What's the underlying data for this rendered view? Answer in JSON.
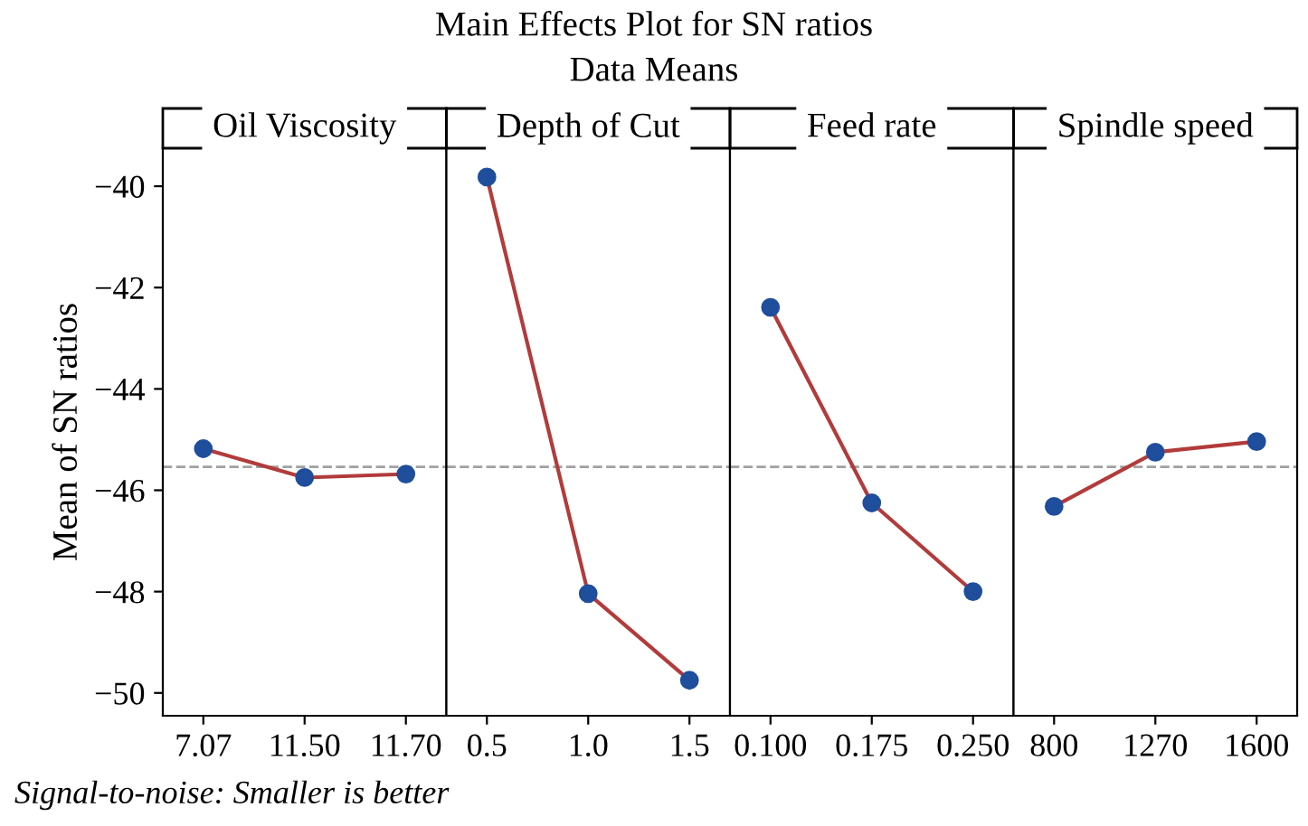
{
  "chart_data": [
    {
      "type": "line",
      "title": "Oil Viscosity",
      "ylabel": "Mean of SN ratios",
      "annotations": [
        "Main Effects Plot for SN ratios",
        "Data Means",
        "Signal-to-noise: Smaller is better"
      ],
      "categories": [
        "7.07",
        "11.50",
        "11.70"
      ],
      "series": [
        {
          "color": "#b23b3b",
          "colors": [
            "#1f4e9c",
            "#1f4e9c",
            "#1f4e9c"
          ],
          "values": [
            -45.18,
            -45.75,
            -45.68
          ]
        }
      ],
      "marker": "circle",
      "ylim": [
        -50.45,
        -39.25
      ],
      "yticks": [
        -50,
        -48,
        -46,
        -44,
        -42,
        -40
      ],
      "ref_lines": [
        {
          "axis": "y",
          "value": -45.54,
          "color": "#a0a0a0",
          "line_style": "dashed"
        }
      ],
      "grid": false
    },
    {
      "type": "line",
      "title": "Depth of Cut",
      "categories": [
        "0.5",
        "1.0",
        "1.5"
      ],
      "series": [
        {
          "color": "#b23b3b",
          "colors": [
            "#1f4e9c",
            "#1f4e9c",
            "#1f4e9c"
          ],
          "values": [
            -39.82,
            -48.04,
            -49.75
          ]
        }
      ],
      "marker": "circle",
      "ylim": [
        -50.45,
        -39.25
      ],
      "yticks": [
        -50,
        -48,
        -46,
        -44,
        -42,
        -40
      ],
      "tick_labels": "x",
      "ref_lines": [
        {
          "axis": "y",
          "value": -45.54,
          "color": "#a0a0a0",
          "line_style": "dashed"
        }
      ],
      "grid": false
    },
    {
      "type": "line",
      "title": "Feed rate",
      "categories": [
        "0.100",
        "0.175",
        "0.250"
      ],
      "series": [
        {
          "color": "#b23b3b",
          "colors": [
            "#1f4e9c",
            "#1f4e9c",
            "#1f4e9c"
          ],
          "values": [
            -42.39,
            -46.25,
            -48.0
          ]
        }
      ],
      "marker": "circle",
      "ylim": [
        -50.45,
        -39.25
      ],
      "yticks": [
        -50,
        -48,
        -46,
        -44,
        -42,
        -40
      ],
      "tick_labels": "x",
      "ref_lines": [
        {
          "axis": "y",
          "value": -45.54,
          "color": "#a0a0a0",
          "line_style": "dashed"
        }
      ],
      "grid": false
    },
    {
      "type": "line",
      "title": "Spindle speed",
      "categories": [
        "800",
        "1270",
        "1600"
      ],
      "series": [
        {
          "color": "#b23b3b",
          "colors": [
            "#1f4e9c",
            "#1f4e9c",
            "#1f4e9c"
          ],
          "values": [
            -46.32,
            -45.25,
            -45.04
          ]
        }
      ],
      "marker": "circle",
      "ylim": [
        -50.45,
        -39.25
      ],
      "yticks": [
        -50,
        -48,
        -46,
        -44,
        -42,
        -40
      ],
      "tick_labels": "x",
      "ref_lines": [
        {
          "axis": "y",
          "value": -45.54,
          "color": "#a0a0a0",
          "line_style": "dashed"
        }
      ],
      "grid": false
    }
  ]
}
